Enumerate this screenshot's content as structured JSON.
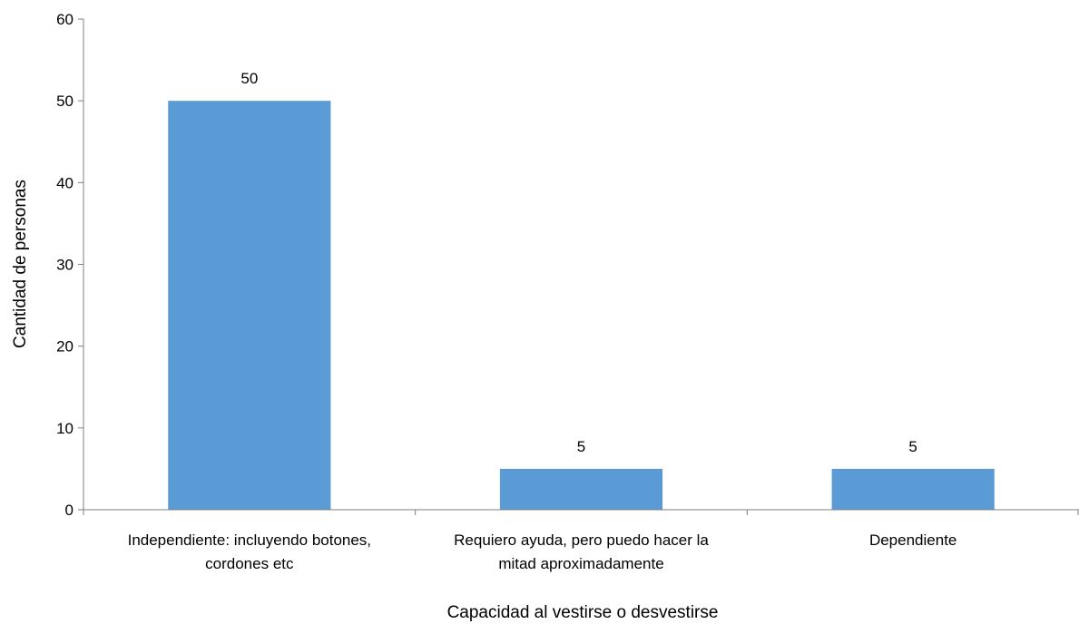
{
  "chart_data": {
    "type": "bar",
    "categories": [
      [
        "Independiente: incluyendo botones,",
        "cordones etc"
      ],
      [
        "Requiero ayuda, pero puedo hacer la",
        "mitad aproximadamente"
      ],
      [
        "Dependiente"
      ]
    ],
    "values": [
      50,
      5,
      5
    ],
    "data_labels": [
      "50",
      "5",
      "5"
    ],
    "xlabel": "Capacidad al vestirse o desvestirse",
    "ylabel": "Cantidad de personas",
    "ylim": [
      0,
      60
    ],
    "yticks": [
      0,
      10,
      20,
      30,
      40,
      50,
      60
    ],
    "bar_color": "#5B9BD5",
    "grid": false,
    "legend": "none"
  }
}
